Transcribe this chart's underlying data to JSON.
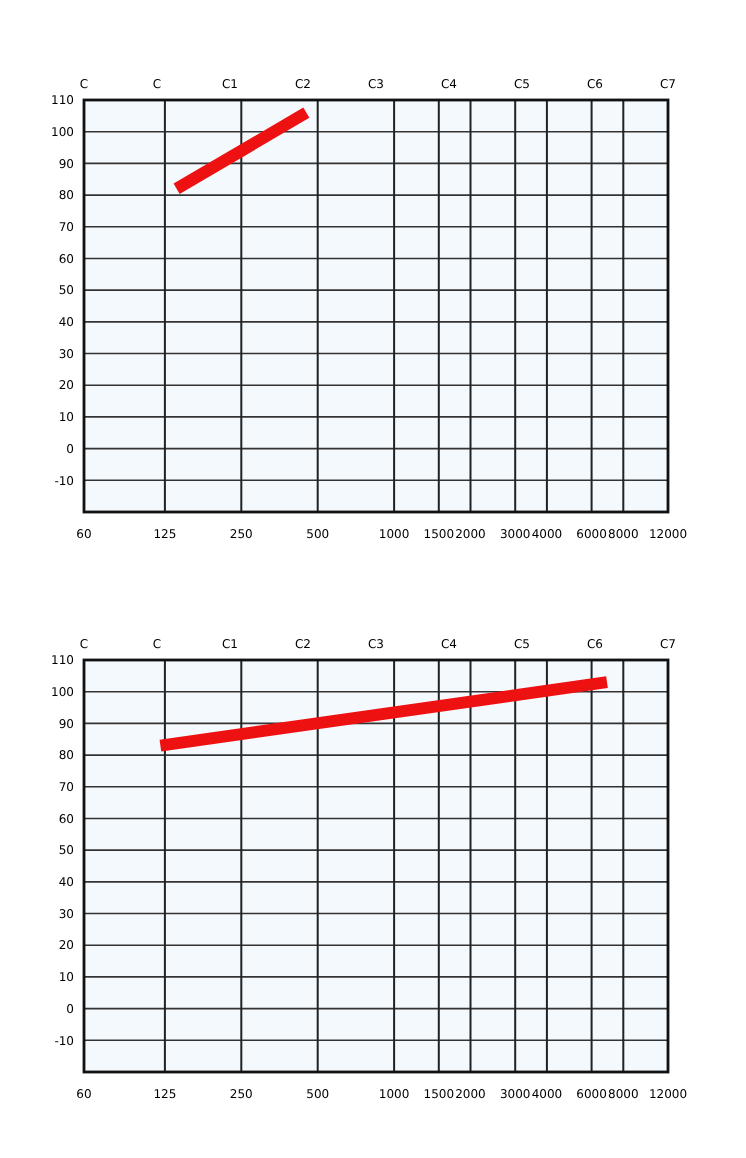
{
  "chart_data": [
    {
      "type": "line",
      "x": [
        139,
        451
      ],
      "series": [
        {
          "color": "#ee1111",
          "values": [
            82,
            106
          ]
        }
      ],
      "log": "x",
      "xlim": [
        60,
        12000
      ],
      "xticks": [
        60,
        125,
        250,
        500,
        1000,
        1500,
        2000,
        3000,
        4000,
        6000,
        8000,
        12000
      ],
      "ylim": [
        -20,
        110
      ],
      "yticks": [
        110,
        100,
        90,
        80,
        70,
        60,
        50,
        40,
        30,
        20,
        10,
        0,
        -10
      ],
      "grid": true,
      "marker": "none",
      "line_style": "solid",
      "annotations": [
        "C",
        "C",
        "C1",
        "C2",
        "C3",
        "C4",
        "C5",
        "C6",
        "C7"
      ]
    },
    {
      "type": "line",
      "x": [
        120,
        6900
      ],
      "series": [
        {
          "color": "#ee1111",
          "values": [
            83,
            103
          ]
        }
      ],
      "log": "x",
      "xlim": [
        60,
        12000
      ],
      "xticks": [
        60,
        125,
        250,
        500,
        1000,
        1500,
        2000,
        3000,
        4000,
        6000,
        8000,
        12000
      ],
      "ylim": [
        -20,
        110
      ],
      "yticks": [
        110,
        100,
        90,
        80,
        70,
        60,
        50,
        40,
        30,
        20,
        10,
        0,
        -10
      ],
      "grid": true,
      "marker": "none",
      "line_style": "solid",
      "annotations": [
        "C",
        "C",
        "C1",
        "C2",
        "C3",
        "C4",
        "C5",
        "C6",
        "C7"
      ]
    }
  ]
}
